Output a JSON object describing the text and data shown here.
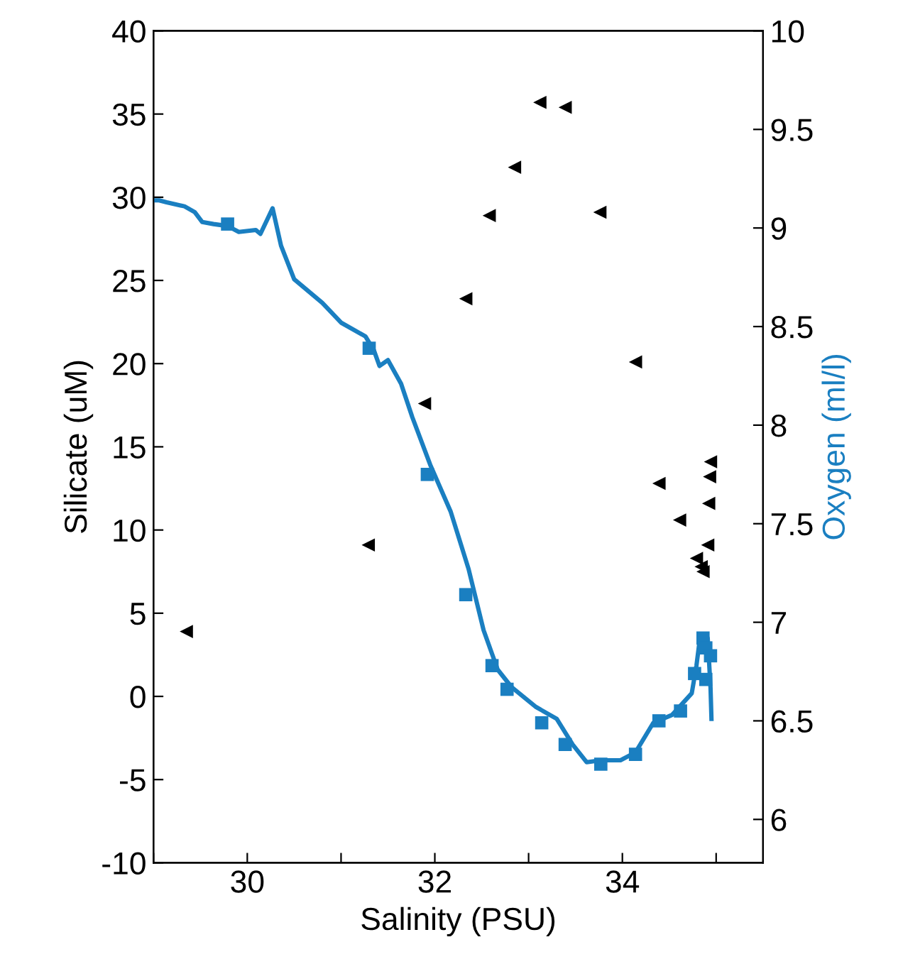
{
  "chart_data": {
    "type": "scatter",
    "xlabel": "Salinity (PSU)",
    "ylabel": "Silicate (uM)",
    "y2label": "Oxygen (ml/l)",
    "xlim": [
      29,
      35.5
    ],
    "xticks": [
      {
        "value": 29,
        "label": null
      },
      30,
      {
        "value": 31,
        "label": null
      },
      32,
      {
        "value": 33,
        "label": null
      },
      34,
      {
        "value": 35,
        "label": null
      }
    ],
    "ylim": [
      -10,
      40
    ],
    "yticks": [
      -10,
      -5,
      0,
      5,
      10,
      15,
      20,
      25,
      30,
      35,
      40
    ],
    "y2lim": [
      5.78,
      10
    ],
    "y2ticks": [
      6,
      6.5,
      7,
      7.5,
      8,
      8.5,
      9,
      9.5,
      10
    ],
    "grid": false,
    "legend": false,
    "series": [
      {
        "marker": "triangle",
        "color": "#000000",
        "x": [
          29.35,
          31.29,
          31.89,
          32.33,
          32.58,
          32.85,
          33.12,
          33.39,
          33.76,
          34.14,
          34.39,
          34.61,
          34.94,
          34.93,
          34.92,
          34.91,
          34.79,
          34.84,
          34.86
        ],
        "values": [
          3.9,
          9.1,
          17.6,
          23.9,
          28.9,
          31.8,
          35.7,
          35.4,
          29.1,
          20.1,
          12.8,
          10.6,
          14.1,
          13.2,
          11.6,
          9.1,
          8.3,
          7.8,
          7.5
        ]
      },
      {
        "type": "line",
        "axis": "y2",
        "marker": "none",
        "line_style": "solid",
        "color": "#1a7fc1",
        "x": [
          29.0,
          29.06,
          29.14,
          29.33,
          29.44,
          29.52,
          29.64,
          29.79,
          29.91,
          30.09,
          30.14,
          30.27,
          30.36,
          30.5,
          30.8,
          31.0,
          31.26,
          31.35,
          31.41,
          31.5,
          31.64,
          31.76,
          31.95,
          32.17,
          32.36,
          32.52,
          32.67,
          32.82,
          33.08,
          33.3,
          33.47,
          33.62,
          33.77,
          33.98,
          34.14,
          34.33,
          34.53,
          34.74,
          34.79,
          34.83,
          34.91,
          34.94,
          34.95
        ],
        "values": [
          9.14,
          9.14,
          9.13,
          9.11,
          9.08,
          9.03,
          9.02,
          9.01,
          8.98,
          8.99,
          8.97,
          9.1,
          8.91,
          8.74,
          8.62,
          8.52,
          8.45,
          8.38,
          8.3,
          8.33,
          8.21,
          8.04,
          7.8,
          7.56,
          7.27,
          6.96,
          6.76,
          6.67,
          6.57,
          6.51,
          6.38,
          6.29,
          6.3,
          6.3,
          6.34,
          6.49,
          6.53,
          6.64,
          6.78,
          6.93,
          6.92,
          6.67,
          6.51
        ]
      },
      {
        "axis": "y2",
        "marker": "square",
        "color": "#1a7fc1",
        "x": [
          29.79,
          31.3,
          31.92,
          32.33,
          32.61,
          32.77,
          33.14,
          33.39,
          33.77,
          34.14,
          34.39,
          34.62,
          34.77,
          34.86,
          34.89,
          34.94,
          34.89
        ],
        "values": [
          9.02,
          8.39,
          7.75,
          7.14,
          6.78,
          6.66,
          6.49,
          6.38,
          6.28,
          6.33,
          6.5,
          6.55,
          6.74,
          6.92,
          6.87,
          6.83,
          6.71
        ]
      }
    ]
  }
}
